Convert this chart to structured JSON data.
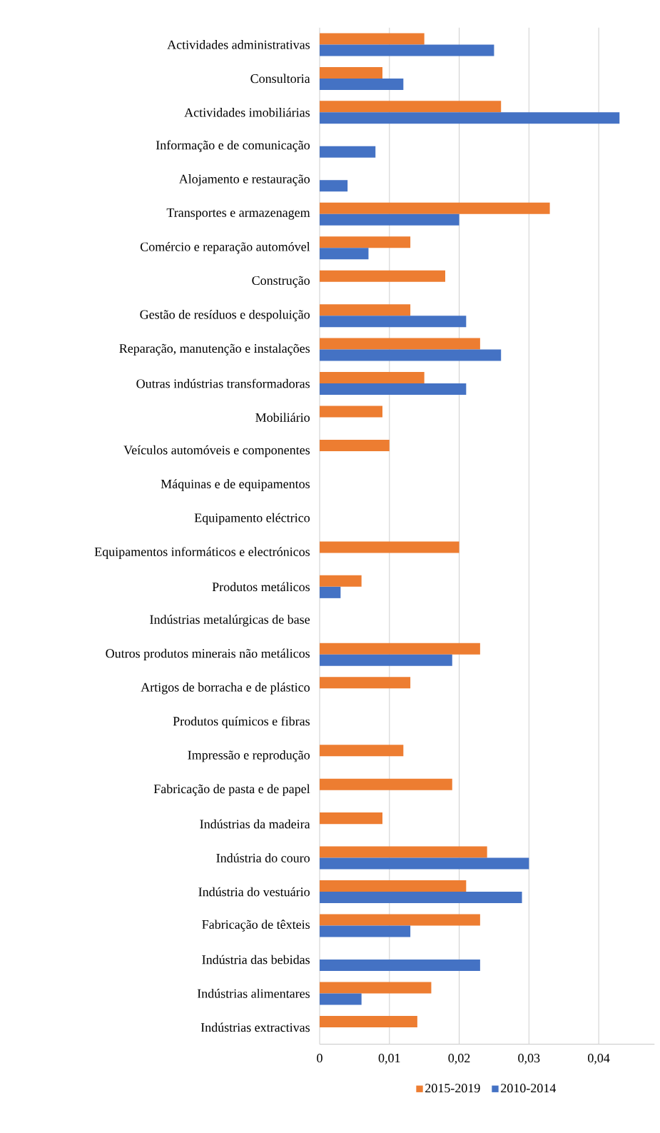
{
  "chart_data": {
    "type": "bar",
    "orientation": "horizontal",
    "categories": [
      "Actividades administrativas",
      "Consultoria",
      "Actividades imobiliárias",
      "Informação e de comunicação",
      "Alojamento e restauração",
      "Transportes e armazenagem",
      "Comércio e reparação automóvel",
      "Construção",
      "Gestão de resíduos e despoluição",
      "Reparação, manutenção e instalações",
      "Outras indústrias transformadoras",
      "Mobiliário",
      "Veículos automóveis e componentes",
      "Máquinas e de equipamentos",
      "Equipamento eléctrico",
      "Equipamentos informáticos e electrónicos",
      "Produtos metálicos",
      "Indústrias metalúrgicas de base",
      "Outros produtos minerais não metálicos",
      "Artigos de borracha e de plástico",
      "Produtos químicos e fibras",
      "Impressão e reprodução",
      "Fabricação de pasta e de papel",
      "Indústrias da madeira",
      "Indústria do couro",
      "Indústria do vestuário",
      "Fabricação de têxteis",
      "Indústria das bebidas",
      "Indústrias alimentares",
      "Indústrias extractivas"
    ],
    "series": [
      {
        "name": "2015-2019",
        "color": "#ed7d31",
        "values": [
          0.015,
          0.009,
          0.026,
          null,
          null,
          0.033,
          0.013,
          0.018,
          0.013,
          0.023,
          0.015,
          0.009,
          0.01,
          null,
          null,
          0.02,
          0.006,
          null,
          0.023,
          0.013,
          null,
          0.012,
          0.019,
          0.009,
          0.024,
          0.021,
          0.023,
          null,
          0.016,
          0.014
        ]
      },
      {
        "name": "2010-2014",
        "color": "#4472c4",
        "values": [
          0.025,
          0.012,
          0.043,
          0.008,
          0.004,
          0.02,
          0.007,
          null,
          0.021,
          0.026,
          0.021,
          null,
          null,
          null,
          null,
          null,
          0.003,
          null,
          0.019,
          null,
          null,
          null,
          null,
          null,
          0.03,
          0.029,
          0.013,
          0.023,
          0.006,
          null
        ]
      }
    ],
    "xlim": [
      0,
      0.048
    ],
    "xticks": [
      0,
      {
        "value": 0.01,
        "label": "0,01"
      },
      {
        "value": 0.02,
        "label": "0,02"
      },
      {
        "value": 0.03,
        "label": "0,03"
      },
      {
        "value": 0.04,
        "label": "0,04"
      }
    ],
    "grid": "x",
    "legend": "bottom"
  }
}
